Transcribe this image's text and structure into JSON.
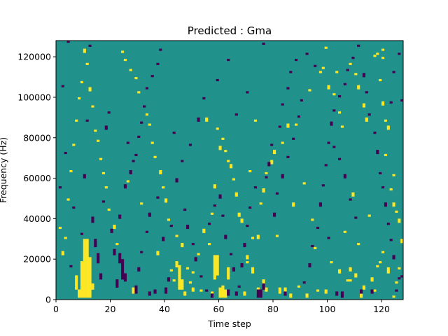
{
  "chart_data": {
    "type": "heatmap",
    "title": "Predicted : Gma",
    "xlabel": "Time step",
    "ylabel": "Frequency (Hz)",
    "xlim": [
      0,
      128
    ],
    "ylim": [
      0,
      128000
    ],
    "x_ticks": [
      0,
      20,
      40,
      60,
      80,
      100,
      120
    ],
    "y_ticks": [
      0,
      20000,
      40000,
      60000,
      80000,
      100000,
      120000
    ],
    "x_tick_labels": [
      "0",
      "20",
      "40",
      "60",
      "80",
      "100",
      "120"
    ],
    "y_tick_labels": [
      "0",
      "20000",
      "40000",
      "60000",
      "80000",
      "100000",
      "120000"
    ],
    "n_time_steps": 128,
    "n_freq_bins": 128,
    "colormap": "viridis",
    "colors": {
      "low": "#440154",
      "mid": "#21918c",
      "high": "#fde725"
    },
    "background_value": 0.5,
    "grid": false,
    "cells_high": [
      [
        8,
        1,
        4
      ],
      [
        9,
        1,
        18
      ],
      [
        10,
        1,
        29
      ],
      [
        11,
        1,
        29
      ],
      [
        12,
        1,
        20
      ],
      [
        7,
        5,
        7
      ],
      [
        13,
        5,
        3
      ],
      [
        28,
        3,
        3
      ],
      [
        47,
        2,
        2
      ],
      [
        50,
        4,
        2
      ],
      [
        57,
        2,
        2
      ],
      [
        60,
        1,
        5
      ],
      [
        61,
        1,
        6
      ],
      [
        62,
        1,
        4
      ],
      [
        45,
        5,
        12
      ],
      [
        46,
        5,
        5
      ],
      [
        44,
        16,
        3
      ],
      [
        58,
        10,
        12
      ],
      [
        59,
        12,
        10
      ],
      [
        63,
        10,
        6
      ],
      [
        69,
        2,
        2
      ],
      [
        72,
        13,
        3
      ],
      [
        72,
        30,
        1
      ],
      [
        70,
        20,
        2
      ],
      [
        74,
        3,
        3
      ],
      [
        76,
        6,
        4
      ],
      [
        77,
        4,
        2
      ],
      [
        82,
        3,
        3
      ],
      [
        84,
        3,
        3
      ],
      [
        86,
        1,
        2
      ],
      [
        89,
        6,
        1
      ],
      [
        92,
        1,
        2
      ],
      [
        96,
        4,
        1
      ],
      [
        99,
        3,
        2
      ],
      [
        104,
        13,
        2
      ],
      [
        108,
        14,
        2
      ],
      [
        108,
        9,
        1
      ],
      [
        110,
        11,
        2
      ],
      [
        112,
        1,
        2
      ],
      [
        113,
        5,
        2
      ],
      [
        116,
        9,
        2
      ],
      [
        117,
        4,
        1
      ],
      [
        119,
        18,
        1
      ],
      [
        120,
        23,
        1
      ],
      [
        122,
        13,
        3
      ],
      [
        124,
        1,
        1
      ],
      [
        125,
        8,
        1
      ],
      [
        126,
        15,
        1
      ],
      [
        127,
        28,
        2
      ],
      [
        126,
        38,
        2
      ],
      [
        125,
        43,
        1
      ],
      [
        124,
        46,
        2
      ],
      [
        123,
        54,
        1
      ],
      [
        124,
        61,
        1
      ],
      [
        122,
        84,
        2
      ],
      [
        121,
        88,
        1
      ],
      [
        120,
        96,
        2
      ],
      [
        120,
        119,
        1
      ],
      [
        118,
        121,
        1
      ],
      [
        120,
        123,
        1
      ],
      [
        119,
        108,
        1
      ],
      [
        117,
        120,
        1
      ],
      [
        114,
        88,
        2
      ],
      [
        113,
        95,
        2
      ],
      [
        111,
        104,
        2
      ],
      [
        110,
        111,
        1
      ],
      [
        108,
        116,
        1
      ],
      [
        103,
        112,
        1
      ],
      [
        105,
        85,
        1
      ],
      [
        104,
        92,
        1
      ],
      [
        102,
        101,
        1
      ],
      [
        100,
        104,
        2
      ],
      [
        99,
        124,
        1
      ],
      [
        98,
        114,
        1
      ],
      [
        97,
        112,
        1
      ],
      [
        93,
        103,
        1
      ],
      [
        88,
        86,
        1
      ],
      [
        85,
        85,
        2
      ],
      [
        83,
        77,
        1
      ],
      [
        80,
        72,
        2
      ],
      [
        79,
        67,
        2
      ],
      [
        77,
        62,
        1
      ],
      [
        76,
        53,
        2
      ],
      [
        75,
        47,
        1
      ],
      [
        74,
        30,
        2
      ],
      [
        73,
        88,
        1
      ],
      [
        70,
        18,
        1
      ],
      [
        68,
        38,
        2
      ],
      [
        67,
        41,
        2
      ],
      [
        66,
        51,
        2
      ],
      [
        65,
        59,
        1
      ],
      [
        64,
        65,
        2
      ],
      [
        63,
        68,
        1
      ],
      [
        62,
        73,
        1
      ],
      [
        61,
        79,
        1
      ],
      [
        60,
        74,
        2
      ],
      [
        59,
        84,
        1
      ],
      [
        58,
        55,
        2
      ],
      [
        57,
        42,
        1
      ],
      [
        56,
        27,
        1
      ],
      [
        54,
        33,
        2
      ],
      [
        52,
        22,
        1
      ],
      [
        50,
        13,
        1
      ],
      [
        49,
        8,
        1
      ],
      [
        48,
        15,
        1
      ],
      [
        46,
        26,
        2
      ],
      [
        44,
        31,
        1
      ],
      [
        43,
        9,
        1
      ],
      [
        41,
        39,
        1
      ],
      [
        40,
        48,
        2
      ],
      [
        39,
        55,
        1
      ],
      [
        38,
        62,
        2
      ],
      [
        36,
        70,
        1
      ],
      [
        35,
        77,
        1
      ],
      [
        34,
        86,
        1
      ],
      [
        33,
        91,
        1
      ],
      [
        30,
        102,
        1
      ],
      [
        29,
        109,
        1
      ],
      [
        27,
        113,
        1
      ],
      [
        25,
        118,
        1
      ],
      [
        24,
        122,
        1
      ],
      [
        22,
        27,
        1
      ],
      [
        21,
        35,
        2
      ],
      [
        19,
        44,
        1
      ],
      [
        18,
        55,
        1
      ],
      [
        17,
        62,
        1
      ],
      [
        16,
        69,
        1
      ],
      [
        15,
        78,
        1
      ],
      [
        14,
        83,
        1
      ],
      [
        13,
        95,
        1
      ],
      [
        12,
        103,
        2
      ],
      [
        11,
        116,
        1
      ],
      [
        10,
        122,
        2
      ],
      [
        9,
        107,
        1
      ],
      [
        8,
        99,
        1
      ],
      [
        7,
        88,
        1
      ],
      [
        6,
        76,
        1
      ],
      [
        5,
        63,
        1
      ],
      [
        4,
        49,
        1
      ],
      [
        3,
        30,
        1
      ],
      [
        2,
        22,
        2
      ],
      [
        1,
        35,
        1
      ],
      [
        26,
        58,
        1
      ],
      [
        31,
        47,
        1
      ],
      [
        37,
        22,
        2
      ],
      [
        42,
        14,
        1
      ],
      [
        53,
        4,
        1
      ],
      [
        55,
        88,
        2
      ],
      [
        71,
        63,
        1
      ],
      [
        81,
        31,
        1
      ],
      [
        87,
        46,
        2
      ],
      [
        91,
        57,
        1
      ],
      [
        94,
        39,
        1
      ],
      [
        95,
        25,
        1
      ],
      [
        101,
        18,
        1
      ],
      [
        106,
        33,
        1
      ],
      [
        107,
        9,
        1
      ],
      [
        109,
        51,
        2
      ],
      [
        111,
        27,
        1
      ],
      [
        115,
        41,
        1
      ],
      [
        118,
        16,
        1
      ],
      [
        121,
        71,
        1
      ]
    ],
    "cells_low": [
      [
        24,
        10,
        10
      ],
      [
        25,
        9,
        4
      ],
      [
        23,
        18,
        5
      ],
      [
        22,
        6,
        4
      ],
      [
        29,
        3,
        4
      ],
      [
        34,
        2,
        2
      ],
      [
        36,
        3,
        2
      ],
      [
        40,
        3,
        3
      ],
      [
        57,
        1,
        2
      ],
      [
        63,
        2,
        3
      ],
      [
        66,
        2,
        2
      ],
      [
        68,
        16,
        2
      ],
      [
        74,
        1,
        4
      ],
      [
        75,
        1,
        4
      ],
      [
        76,
        5,
        3
      ],
      [
        84,
        2,
        2
      ],
      [
        103,
        2,
        2
      ],
      [
        105,
        1,
        3
      ],
      [
        112,
        3,
        2
      ],
      [
        116,
        3,
        2
      ],
      [
        125,
        4,
        1
      ],
      [
        127,
        11,
        1
      ],
      [
        13,
        38,
        3
      ],
      [
        14,
        26,
        4
      ],
      [
        15,
        18,
        5
      ],
      [
        16,
        10,
        3
      ],
      [
        17,
        48,
        1
      ],
      [
        20,
        33,
        2
      ],
      [
        21,
        22,
        3
      ],
      [
        23,
        40,
        2
      ],
      [
        25,
        55,
        2
      ],
      [
        27,
        62,
        2
      ],
      [
        29,
        71,
        1
      ],
      [
        30,
        80,
        1
      ],
      [
        31,
        87,
        1
      ],
      [
        32,
        95,
        1
      ],
      [
        33,
        104,
        1
      ],
      [
        35,
        110,
        1
      ],
      [
        37,
        116,
        1
      ],
      [
        38,
        123,
        1
      ],
      [
        18,
        84,
        2
      ],
      [
        19,
        92,
        1
      ],
      [
        26,
        77,
        1
      ],
      [
        28,
        68,
        1
      ],
      [
        12,
        125,
        1
      ],
      [
        4,
        127,
        1
      ],
      [
        30,
        14,
        2
      ],
      [
        31,
        23,
        1
      ],
      [
        33,
        33,
        1
      ],
      [
        34,
        41,
        2
      ],
      [
        37,
        50,
        1
      ],
      [
        39,
        29,
        2
      ],
      [
        41,
        9,
        2
      ],
      [
        42,
        36,
        1
      ],
      [
        47,
        44,
        1
      ],
      [
        48,
        35,
        2
      ],
      [
        50,
        27,
        1
      ],
      [
        51,
        19,
        2
      ],
      [
        53,
        11,
        1
      ],
      [
        55,
        4,
        1
      ],
      [
        56,
        37,
        1
      ],
      [
        58,
        46,
        1
      ],
      [
        60,
        50,
        2
      ],
      [
        61,
        41,
        1
      ],
      [
        62,
        30,
        2
      ],
      [
        64,
        22,
        1
      ],
      [
        65,
        14,
        2
      ],
      [
        67,
        6,
        1
      ],
      [
        69,
        26,
        2
      ],
      [
        70,
        36,
        1
      ],
      [
        71,
        45,
        1
      ],
      [
        73,
        55,
        1
      ],
      [
        77,
        60,
        1
      ],
      [
        78,
        66,
        2
      ],
      [
        79,
        76,
        1
      ],
      [
        82,
        85,
        1
      ],
      [
        83,
        96,
        1
      ],
      [
        85,
        104,
        1
      ],
      [
        86,
        112,
        1
      ],
      [
        88,
        118,
        1
      ],
      [
        80,
        41,
        2
      ],
      [
        81,
        52,
        1
      ],
      [
        83,
        60,
        2
      ],
      [
        85,
        70,
        1
      ],
      [
        87,
        79,
        1
      ],
      [
        89,
        90,
        1
      ],
      [
        90,
        98,
        1
      ],
      [
        91,
        8,
        1
      ],
      [
        93,
        16,
        2
      ],
      [
        94,
        26,
        1
      ],
      [
        96,
        35,
        1
      ],
      [
        97,
        46,
        2
      ],
      [
        98,
        56,
        1
      ],
      [
        99,
        66,
        1
      ],
      [
        100,
        77,
        1
      ],
      [
        101,
        86,
        2
      ],
      [
        102,
        93,
        1
      ],
      [
        104,
        100,
        1
      ],
      [
        106,
        106,
        1
      ],
      [
        107,
        113,
        1
      ],
      [
        109,
        119,
        1
      ],
      [
        111,
        125,
        1
      ],
      [
        113,
        110,
        2
      ],
      [
        114,
        102,
        1
      ],
      [
        115,
        91,
        1
      ],
      [
        117,
        82,
        1
      ],
      [
        118,
        72,
        2
      ],
      [
        119,
        62,
        1
      ],
      [
        120,
        55,
        1
      ],
      [
        121,
        46,
        2
      ],
      [
        122,
        37,
        1
      ],
      [
        123,
        29,
        1
      ],
      [
        124,
        20,
        2
      ],
      [
        126,
        10,
        1
      ],
      [
        127,
        98,
        1
      ],
      [
        126,
        121,
        1
      ],
      [
        124,
        112,
        1
      ],
      [
        123,
        97,
        1
      ],
      [
        108,
        49,
        1
      ],
      [
        110,
        40,
        1
      ],
      [
        106,
        60,
        2
      ],
      [
        104,
        69,
        1
      ],
      [
        102,
        75,
        1
      ],
      [
        100,
        30,
        1
      ],
      [
        95,
        115,
        1
      ],
      [
        92,
        121,
        1
      ],
      [
        76,
        126,
        1
      ],
      [
        70,
        102,
        1
      ],
      [
        66,
        91,
        1
      ],
      [
        63,
        118,
        1
      ],
      [
        59,
        108,
        1
      ],
      [
        54,
        99,
        1
      ],
      [
        52,
        88,
        2
      ],
      [
        49,
        76,
        1
      ],
      [
        46,
        68,
        1
      ],
      [
        44,
        58,
        2
      ],
      [
        43,
        82,
        1
      ],
      [
        11,
        88,
        1
      ],
      [
        10,
        60,
        2
      ],
      [
        9,
        32,
        1
      ],
      [
        6,
        45,
        1
      ],
      [
        5,
        16,
        1
      ],
      [
        3,
        72,
        1
      ],
      [
        2,
        105,
        1
      ],
      [
        1,
        55,
        1
      ]
    ]
  }
}
